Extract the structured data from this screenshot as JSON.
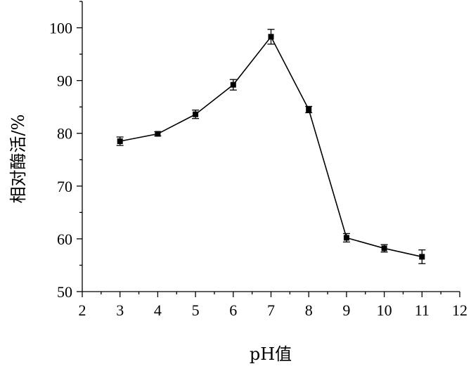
{
  "chart_data": {
    "type": "line",
    "xlabel": "pH值",
    "ylabel": "相对酶活/%",
    "xlim": [
      2,
      12
    ],
    "ylim": [
      50,
      105
    ],
    "x_ticks": [
      2,
      3,
      4,
      5,
      6,
      7,
      8,
      9,
      10,
      11,
      12
    ],
    "y_ticks": [
      50,
      60,
      70,
      80,
      90,
      100
    ],
    "x_tick_labels": [
      "2",
      "3",
      "4",
      "5",
      "6",
      "7",
      "8",
      "9",
      "10",
      "11",
      "12"
    ],
    "y_tick_labels": [
      "50",
      "60",
      "70",
      "80",
      "90",
      "100"
    ],
    "grid": false,
    "series": [
      {
        "x": [
          3,
          4,
          5,
          6,
          7,
          8,
          9,
          10,
          11
        ],
        "values": [
          78.5,
          79.9,
          83.6,
          89.2,
          98.3,
          84.5,
          60.2,
          58.2,
          56.6
        ],
        "errors": [
          0.8,
          0.4,
          0.8,
          1.0,
          1.4,
          0.6,
          0.8,
          0.7,
          1.3
        ]
      }
    ]
  }
}
